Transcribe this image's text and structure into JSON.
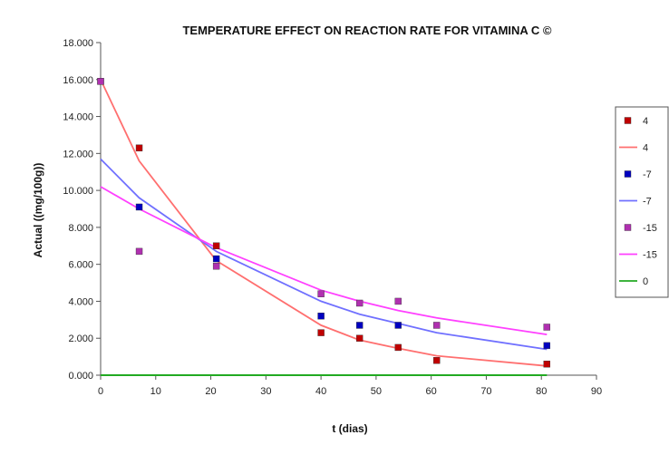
{
  "chart_data": {
    "type": "scatter",
    "title": "TEMPERATURE EFFECT ON REACTION RATE FOR VITAMINA C ©",
    "xlabel": "t (dias)",
    "ylabel": "Actual ((mg/100g))",
    "xlim": [
      0,
      90
    ],
    "ylim": [
      0,
      18
    ],
    "x_ticks": [
      "0",
      "10",
      "20",
      "30",
      "40",
      "50",
      "60",
      "70",
      "80",
      "90"
    ],
    "y_ticks": [
      "0.000",
      "2.000",
      "4.000",
      "6.000",
      "8.000",
      "10.000",
      "12.000",
      "14.000",
      "16.000",
      "18.000"
    ],
    "grid": false,
    "legend_position": "right",
    "legend": [
      "4",
      "4",
      "-7",
      "-7",
      "-15",
      "-15",
      "0"
    ],
    "series": [
      {
        "name": "4",
        "kind": "points",
        "color": "#c00000",
        "x": [
          0,
          7,
          21,
          40,
          47,
          54,
          61,
          81
        ],
        "y": [
          15.9,
          12.3,
          7.0,
          2.3,
          2.0,
          1.5,
          0.8,
          0.6
        ]
      },
      {
        "name": "4",
        "kind": "line",
        "color": "#ff6f6f",
        "x": [
          0,
          7,
          21,
          40,
          47,
          54,
          61,
          81
        ],
        "y": [
          16.0,
          11.6,
          6.2,
          2.7,
          1.9,
          1.45,
          1.05,
          0.5
        ]
      },
      {
        "name": "-7",
        "kind": "points",
        "color": "#0000c0",
        "x": [
          7,
          21,
          40,
          47,
          54,
          81
        ],
        "y": [
          9.1,
          6.3,
          3.2,
          2.7,
          2.7,
          1.6
        ]
      },
      {
        "name": "-7",
        "kind": "line",
        "color": "#7070ff",
        "x": [
          0,
          7,
          21,
          40,
          47,
          54,
          61,
          81
        ],
        "y": [
          11.7,
          9.6,
          6.7,
          4.0,
          3.3,
          2.8,
          2.3,
          1.4
        ]
      },
      {
        "name": "-15",
        "kind": "points",
        "color": "#b030b0",
        "x": [
          0,
          7,
          21,
          40,
          47,
          54,
          61,
          81
        ],
        "y": [
          15.9,
          6.7,
          5.9,
          4.4,
          3.9,
          4.0,
          2.7,
          2.6
        ]
      },
      {
        "name": "-15",
        "kind": "line",
        "color": "#ff40ff",
        "x": [
          0,
          7,
          21,
          40,
          47,
          54,
          61,
          81
        ],
        "y": [
          10.2,
          9.0,
          6.9,
          4.6,
          4.0,
          3.5,
          3.1,
          2.2
        ]
      },
      {
        "name": "0",
        "kind": "line",
        "color": "#22aa22",
        "x": [
          0,
          81
        ],
        "y": [
          0,
          0
        ]
      }
    ]
  }
}
